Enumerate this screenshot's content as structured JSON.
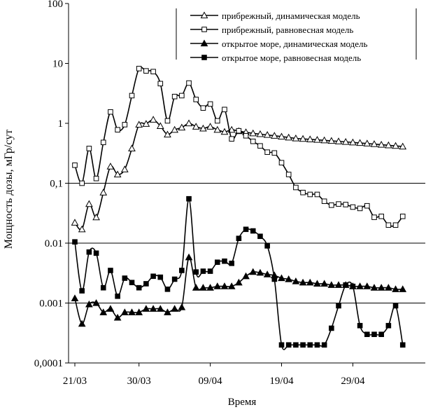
{
  "chart_data": {
    "type": "line",
    "title": "",
    "xlabel": "Время",
    "ylabel": "Мощность дозы, мГр/сут",
    "yscale": "log",
    "ylim": [
      0.0001,
      100
    ],
    "xlim": [
      0,
      47
    ],
    "x_ticks": [
      {
        "x": 0,
        "label": "21/03"
      },
      {
        "x": 9,
        "label": "30/03"
      },
      {
        "x": 19,
        "label": "09/04"
      },
      {
        "x": 29,
        "label": "19/04"
      },
      {
        "x": 39,
        "label": "29/04"
      }
    ],
    "y_ticks": [
      {
        "v": 0.0001,
        "label": "0,0001"
      },
      {
        "v": 0.001,
        "label": "0.001"
      },
      {
        "v": 0.01,
        "label": "0.01"
      },
      {
        "v": 0.1,
        "label": "0,1"
      },
      {
        "v": 1,
        "label": "1"
      },
      {
        "v": 10,
        "label": "10"
      },
      {
        "v": 100,
        "label": "100"
      }
    ],
    "gridlines": [
      0.001,
      0.01,
      0.1
    ],
    "legend_position": "top-right",
    "series": [
      {
        "name": "прибрежный, динамическая модель",
        "marker": "triangle-open",
        "x": [
          0,
          1,
          2,
          3,
          4,
          5,
          6,
          7,
          8,
          9,
          10,
          11,
          12,
          13,
          14,
          15,
          16,
          17,
          18,
          19,
          20,
          21,
          22,
          23,
          24,
          25,
          26,
          27,
          28,
          29,
          30,
          31,
          32,
          33,
          34,
          35,
          36,
          37,
          38,
          39,
          40,
          41,
          42,
          43,
          44,
          45,
          46
        ],
        "values": [
          0.022,
          0.017,
          0.045,
          0.027,
          0.07,
          0.19,
          0.14,
          0.17,
          0.38,
          0.95,
          0.98,
          1.15,
          0.9,
          0.65,
          0.78,
          0.85,
          1.0,
          0.88,
          0.82,
          0.88,
          0.78,
          0.72,
          0.78,
          0.74,
          0.71,
          0.68,
          0.66,
          0.64,
          0.62,
          0.6,
          0.58,
          0.56,
          0.55,
          0.54,
          0.53,
          0.52,
          0.51,
          0.5,
          0.49,
          0.48,
          0.47,
          0.46,
          0.45,
          0.44,
          0.43,
          0.42,
          0.41
        ]
      },
      {
        "name": "прибрежный, равновесная модель",
        "marker": "square-open",
        "x": [
          0,
          1,
          2,
          3,
          4,
          5,
          6,
          7,
          8,
          9,
          10,
          11,
          12,
          13,
          14,
          15,
          16,
          17,
          18,
          19,
          20,
          21,
          22,
          23,
          24,
          25,
          26,
          27,
          28,
          29,
          30,
          31,
          32,
          33,
          34,
          35,
          36,
          37,
          38,
          39,
          40,
          41,
          42,
          43,
          44,
          45,
          46
        ],
        "values": [
          0.2,
          0.1,
          0.38,
          0.12,
          0.48,
          1.55,
          0.78,
          0.95,
          2.9,
          8.2,
          7.5,
          7.3,
          4.6,
          1.1,
          2.8,
          2.9,
          4.7,
          2.5,
          1.8,
          2.1,
          1.1,
          1.7,
          0.55,
          0.75,
          0.62,
          0.5,
          0.42,
          0.33,
          0.32,
          0.22,
          0.14,
          0.085,
          0.07,
          0.065,
          0.065,
          0.05,
          0.043,
          0.045,
          0.044,
          0.04,
          0.038,
          0.042,
          0.027,
          0.028,
          0.02,
          0.02,
          0.028
        ]
      },
      {
        "name": "открытое море, динамическая модель",
        "marker": "triangle-filled",
        "x": [
          0,
          1,
          2,
          3,
          4,
          5,
          6,
          7,
          8,
          9,
          10,
          11,
          12,
          13,
          14,
          15,
          16,
          17,
          18,
          19,
          20,
          21,
          22,
          23,
          24,
          25,
          26,
          27,
          28,
          29,
          30,
          31,
          32,
          33,
          34,
          35,
          36,
          37,
          38,
          39,
          40,
          41,
          42,
          43,
          44,
          45,
          46
        ],
        "values": [
          0.0012,
          0.00045,
          0.00095,
          0.001,
          0.0007,
          0.0008,
          0.00057,
          0.0007,
          0.0007,
          0.0007,
          0.0008,
          0.0008,
          0.0008,
          0.0007,
          0.0008,
          0.00085,
          0.0058,
          0.0018,
          0.0018,
          0.0018,
          0.0019,
          0.0019,
          0.0019,
          0.0022,
          0.0028,
          0.0033,
          0.0032,
          0.003,
          0.0029,
          0.0026,
          0.0025,
          0.0023,
          0.0022,
          0.0022,
          0.0021,
          0.0021,
          0.002,
          0.002,
          0.002,
          0.0019,
          0.0019,
          0.0019,
          0.0018,
          0.0018,
          0.0018,
          0.0017,
          0.0017
        ]
      },
      {
        "name": "открытое море, равновесная модель",
        "marker": "square-filled",
        "x": [
          0,
          1,
          2,
          3,
          4,
          5,
          6,
          7,
          8,
          9,
          10,
          11,
          12,
          13,
          14,
          15,
          16,
          17,
          18,
          19,
          20,
          21,
          22,
          23,
          24,
          25,
          26,
          27,
          28,
          29,
          30,
          31,
          32,
          33,
          34,
          35,
          36,
          37,
          38,
          39,
          40,
          41,
          42,
          43,
          44,
          45,
          46
        ],
        "values": [
          0.0105,
          0.0016,
          0.0071,
          0.0068,
          0.0018,
          0.0035,
          0.0013,
          0.0026,
          0.0022,
          0.0018,
          0.0021,
          0.0028,
          0.0027,
          0.0017,
          0.0025,
          0.0035,
          0.055,
          0.0033,
          0.0034,
          0.0034,
          0.0048,
          0.005,
          0.0046,
          0.012,
          0.017,
          0.016,
          0.013,
          0.009,
          0.0025,
          0.0002,
          0.0002,
          0.0002,
          0.0002,
          0.0002,
          0.0002,
          0.0002,
          0.00038,
          0.0009,
          0.002,
          0.0019,
          0.00042,
          0.0003,
          0.0003,
          0.0003,
          0.00042,
          0.0009,
          0.0002
        ]
      }
    ]
  }
}
